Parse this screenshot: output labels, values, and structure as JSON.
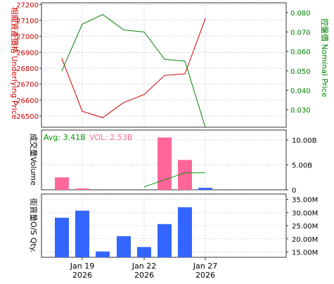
{
  "colors": {
    "underlying": "#cc0000",
    "nominal": "#008000",
    "volume_up": "#ff6699",
    "volume_down": "#3366ff",
    "avg_line": "#009900",
    "os_bars": "#3366ff",
    "grid": "#999999",
    "border": "#333333"
  },
  "chart_data": [
    {
      "type": "line",
      "panel": "price",
      "x": [
        "2026-01-18",
        "2026-01-19",
        "2026-01-20",
        "2026-01-21",
        "2026-01-22",
        "2026-01-23",
        "2026-01-26",
        "2026-01-27"
      ],
      "y_left_label": "相關資產價格 Underlying Price",
      "y_right_label": "控盤價 Nominal Price",
      "ylim_left": [
        26430,
        27210
      ],
      "ylim_right": [
        0.021,
        0.085
      ],
      "yticks_left": [
        "26500",
        "26600",
        "26700",
        "26800",
        "26900",
        "27000",
        "27100",
        "27200"
      ],
      "yticks_right": [
        "0.030",
        "0.040",
        "0.050",
        "0.060",
        "0.070",
        "0.080"
      ],
      "series": [
        {
          "name": "Underlying Price",
          "axis": "left",
          "values": [
            26860,
            26530,
            26490,
            26585,
            26635,
            26755,
            26765,
            27110
          ]
        },
        {
          "name": "Nominal Price",
          "axis": "right",
          "values": [
            0.05,
            0.074,
            0.079,
            0.071,
            0.07,
            0.056,
            0.055,
            0.021
          ]
        }
      ],
      "grid": true
    },
    {
      "type": "bar",
      "panel": "volume",
      "y_left_label": "成交量Volume",
      "avg_label": "Avg: 3.41B",
      "vol_label": "VOL: 2.53B",
      "ylim": [
        0,
        12
      ],
      "yticks": [
        "0",
        "5.00B",
        "10.00B"
      ],
      "bars": [
        {
          "date": "2026-01-18",
          "value": 2.5,
          "direction": "up"
        },
        {
          "date": "2026-01-19",
          "value": 0.25,
          "direction": "up"
        },
        {
          "date": "2026-01-23",
          "value": 10.5,
          "direction": "up"
        },
        {
          "date": "2026-01-26",
          "value": 6.0,
          "direction": "up"
        },
        {
          "date": "2026-01-27",
          "value": 0.4,
          "direction": "down"
        }
      ],
      "avg_line": {
        "dates": [
          "2026-01-22",
          "2026-01-23",
          "2026-01-26",
          "2026-01-27"
        ],
        "values": [
          0.6,
          2.0,
          3.4,
          3.41
        ]
      },
      "grid": true
    },
    {
      "type": "bar",
      "panel": "outstanding",
      "y_left_label": "街貨量O/S Qty.",
      "ylim": [
        13,
        37
      ],
      "yticks": [
        "15.00M",
        "20.00M",
        "25.00M",
        "30.00M",
        "35.00M"
      ],
      "bars": [
        {
          "date": "2026-01-18",
          "value": 28.0
        },
        {
          "date": "2026-01-19",
          "value": 30.7
        },
        {
          "date": "2026-01-20",
          "value": 15.2
        },
        {
          "date": "2026-01-21",
          "value": 21.0
        },
        {
          "date": "2026-01-22",
          "value": 16.9
        },
        {
          "date": "2026-01-23",
          "value": 25.6
        },
        {
          "date": "2026-01-26",
          "value": 32.0
        }
      ],
      "grid": true
    }
  ],
  "x_axis": {
    "ticks": [
      {
        "date": "2026-01-19",
        "line1": "Jan 19",
        "line2": "2026"
      },
      {
        "date": "2026-01-22",
        "line1": "Jan 22",
        "line2": "2026"
      },
      {
        "date": "2026-01-27",
        "line1": "Jan 27",
        "line2": "2026"
      }
    ]
  }
}
